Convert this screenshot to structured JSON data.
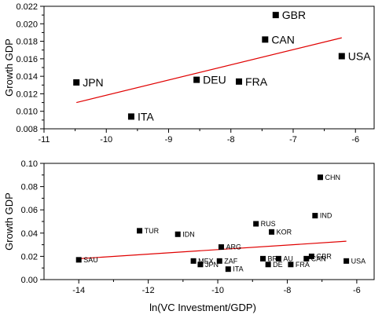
{
  "chart_data": [
    {
      "type": "scatter",
      "title": "",
      "xlabel": "",
      "ylabel": "Growth GDP",
      "xlim": [
        -11,
        -5.7
      ],
      "ylim": [
        0.008,
        0.022
      ],
      "xticks": [
        -11,
        -10,
        -9,
        -8,
        -7,
        -6
      ],
      "xtick_labels": [
        "-11",
        "-10",
        "-9",
        "-8",
        "-7",
        "-6"
      ],
      "yticks": [
        0.008,
        0.01,
        0.012,
        0.014,
        0.016,
        0.018,
        0.02,
        0.022
      ],
      "ytick_labels": [
        "0.008",
        "0.010",
        "0.012",
        "0.014",
        "0.016",
        "0.018",
        "0.020",
        "0.022"
      ],
      "grid": false,
      "marker_color": "#000000",
      "trend_color": "#e00000",
      "points": [
        {
          "label": "GBR",
          "x": -7.28,
          "y": 0.021
        },
        {
          "label": "CAN",
          "x": -7.45,
          "y": 0.0182
        },
        {
          "label": "USA",
          "x": -6.22,
          "y": 0.0163
        },
        {
          "label": "DEU",
          "x": -8.55,
          "y": 0.0136
        },
        {
          "label": "FRA",
          "x": -7.87,
          "y": 0.0134
        },
        {
          "label": "JPN",
          "x": -10.48,
          "y": 0.0133
        },
        {
          "label": "ITA",
          "x": -9.6,
          "y": 0.0094
        }
      ],
      "trendline": {
        "x": [
          -10.48,
          -6.22
        ],
        "y": [
          0.011,
          0.0184
        ]
      }
    },
    {
      "type": "scatter",
      "title": "",
      "xlabel": "ln(VC Investment/GDP)",
      "ylabel": "Growth GDP",
      "xlim": [
        -15,
        -5.5
      ],
      "ylim": [
        0.0,
        0.1
      ],
      "xticks": [
        -14,
        -12,
        -10,
        -8,
        -6
      ],
      "xtick_labels": [
        "-14",
        "-12",
        "-10",
        "-8",
        "-6"
      ],
      "yticks": [
        0.0,
        0.02,
        0.04,
        0.06,
        0.08,
        0.1
      ],
      "ytick_labels": [
        "0.00",
        "0.02",
        "0.04",
        "0.06",
        "0.08",
        "0.10"
      ],
      "grid": false,
      "marker_color": "#000000",
      "trend_color": "#e00000",
      "points": [
        {
          "label": "CHN",
          "x": -7.05,
          "y": 0.088
        },
        {
          "label": "IND",
          "x": -7.2,
          "y": 0.055
        },
        {
          "label": "RUS",
          "x": -8.9,
          "y": 0.048
        },
        {
          "label": "TUR",
          "x": -12.25,
          "y": 0.042
        },
        {
          "label": "KOR",
          "x": -8.45,
          "y": 0.041
        },
        {
          "label": "IDN",
          "x": -11.15,
          "y": 0.039
        },
        {
          "label": "ARG",
          "x": -9.9,
          "y": 0.028
        },
        {
          "label": "GBR",
          "x": -7.3,
          "y": 0.02
        },
        {
          "label": "BR",
          "x": -8.7,
          "y": 0.018
        },
        {
          "label": "AU",
          "x": -8.25,
          "y": 0.018
        },
        {
          "label": "CAN",
          "x": -7.45,
          "y": 0.018
        },
        {
          "label": "SAU",
          "x": -14.0,
          "y": 0.017
        },
        {
          "label": "MEX",
          "x": -10.7,
          "y": 0.016
        },
        {
          "label": "ZAF",
          "x": -9.95,
          "y": 0.016
        },
        {
          "label": "USA",
          "x": -6.3,
          "y": 0.016
        },
        {
          "label": "DE",
          "x": -8.55,
          "y": 0.013
        },
        {
          "label": "FRA",
          "x": -7.9,
          "y": 0.013
        },
        {
          "label": "JPN",
          "x": -10.5,
          "y": 0.013
        },
        {
          "label": "ITA",
          "x": -9.7,
          "y": 0.009
        }
      ],
      "trendline": {
        "x": [
          -14.0,
          -6.3
        ],
        "y": [
          0.018,
          0.033
        ]
      }
    }
  ]
}
